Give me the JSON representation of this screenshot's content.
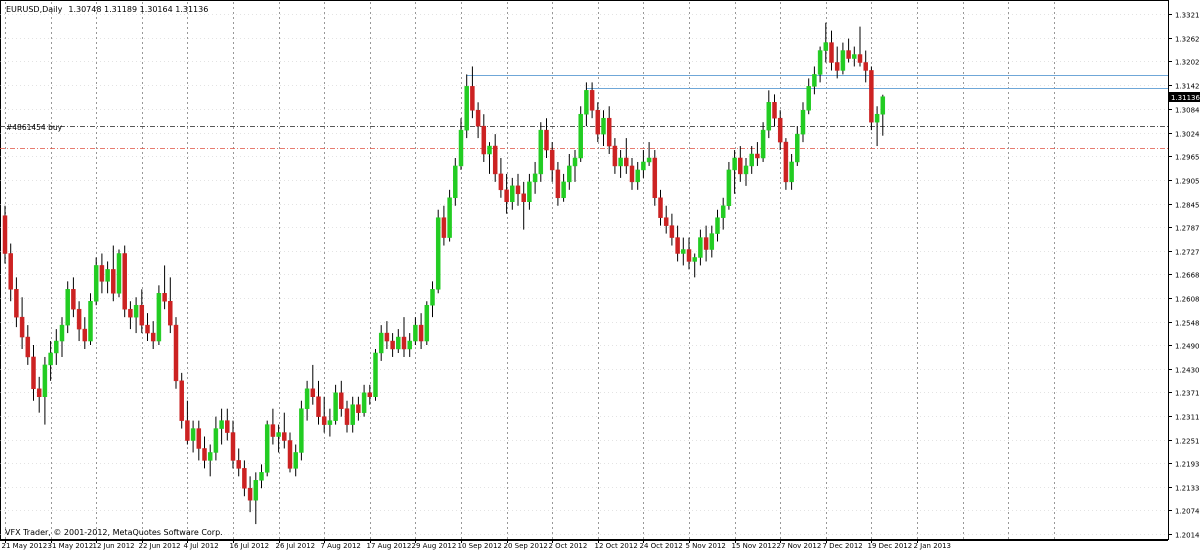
{
  "header": {
    "symbol": "EURUSD,Daily",
    "ohlc": "1.30748 1.31189 1.30164 1.31136"
  },
  "order_label": "#4861454 buy",
  "footer": {
    "copyright": "VFX Trader, © 2001-2012, MetaQuotes Software Corp."
  },
  "colors": {
    "bull": "#22cc22",
    "bear": "#cc2222",
    "grid": "#c8c8c8",
    "level_line": "#6fa7d8",
    "order_line": "#222222",
    "stop_line": "#e05040",
    "text": "#000000"
  },
  "chart_data": {
    "type": "candlestick",
    "price_axis_ticks": [
      1.3321,
      1.32625,
      1.32025,
      1.31425,
      1.3084,
      1.3024,
      1.29655,
      1.29055,
      1.28455,
      1.2787,
      1.2727,
      1.26685,
      1.26085,
      1.2548,
      1.249,
      1.243,
      1.23715,
      1.23115,
      1.22515,
      1.2193,
      1.2133,
      1.20745,
      1.20145
    ],
    "price_axis_labels": [
      "1.33210",
      "1.32625",
      "1.32025",
      "1.31425",
      "1.30840",
      "1.30240",
      "1.29655",
      "1.29055",
      "1.28455",
      "1.27870",
      "1.27270",
      "1.26685",
      "1.26085",
      "1.25480",
      "1.24900",
      "1.24300",
      "1.23715",
      "1.23115",
      "1.22515",
      "1.21930",
      "1.21330",
      "1.20745",
      "1.20145"
    ],
    "ylim": [
      1.2,
      1.3352
    ],
    "date_axis_labels": [
      "21 May 2012",
      "31 May 2012",
      "12 Jun 2012",
      "22 Jun 2012",
      "4 Jul 2012",
      "16 Jul 2012",
      "26 Jul 2012",
      "7 Aug 2012",
      "17 Aug 2012",
      "29 Aug 2012",
      "10 Sep 2012",
      "20 Sep 2012",
      "2 Oct 2012",
      "12 Oct 2012",
      "24 Oct 2012",
      "5 Nov 2012",
      "15 Nov 2012",
      "27 Nov 2012",
      "7 Dec 2012",
      "19 Dec 2012",
      "2 Jan 2013"
    ],
    "current_price": 1.31136,
    "current_price_label": "1.31136",
    "levels": [
      {
        "kind": "resistance",
        "price": 1.3169,
        "from_index": 81
      },
      {
        "kind": "resistance",
        "price": 1.3136,
        "from_index": 102
      }
    ],
    "order_line_price": 1.304,
    "stop_line_price": 1.2985,
    "grid": true,
    "candles": [
      [
        1.2815,
        1.284,
        1.2695,
        1.272
      ],
      [
        1.272,
        1.2745,
        1.26,
        1.263
      ],
      [
        1.263,
        1.266,
        1.2535,
        1.256
      ],
      [
        1.256,
        1.261,
        1.248,
        1.251
      ],
      [
        1.251,
        1.254,
        1.244,
        1.246
      ],
      [
        1.246,
        1.249,
        1.235,
        1.238
      ],
      [
        1.238,
        1.241,
        1.232,
        1.236
      ],
      [
        1.236,
        1.246,
        1.229,
        1.244
      ],
      [
        1.244,
        1.25,
        1.24,
        1.247
      ],
      [
        1.247,
        1.253,
        1.244,
        1.25
      ],
      [
        1.25,
        1.256,
        1.246,
        1.254
      ],
      [
        1.254,
        1.265,
        1.252,
        1.263
      ],
      [
        1.263,
        1.266,
        1.256,
        1.258
      ],
      [
        1.258,
        1.26,
        1.25,
        1.253
      ],
      [
        1.253,
        1.256,
        1.248,
        1.25
      ],
      [
        1.25,
        1.262,
        1.249,
        1.26
      ],
      [
        1.26,
        1.271,
        1.259,
        1.269
      ],
      [
        1.269,
        1.272,
        1.262,
        1.265
      ],
      [
        1.265,
        1.27,
        1.262,
        1.268
      ],
      [
        1.268,
        1.274,
        1.26,
        1.262
      ],
      [
        1.262,
        1.273,
        1.261,
        1.272
      ],
      [
        1.272,
        1.274,
        1.256,
        1.258
      ],
      [
        1.258,
        1.26,
        1.253,
        1.256
      ],
      [
        1.256,
        1.261,
        1.252,
        1.259
      ],
      [
        1.259,
        1.263,
        1.252,
        1.254
      ],
      [
        1.254,
        1.257,
        1.25,
        1.252
      ],
      [
        1.252,
        1.255,
        1.248,
        1.25
      ],
      [
        1.25,
        1.264,
        1.249,
        1.262
      ],
      [
        1.262,
        1.269,
        1.258,
        1.26
      ],
      [
        1.26,
        1.266,
        1.252,
        1.254
      ],
      [
        1.254,
        1.256,
        1.238,
        1.24
      ],
      [
        1.24,
        1.242,
        1.228,
        1.23
      ],
      [
        1.23,
        1.235,
        1.224,
        1.225
      ],
      [
        1.225,
        1.23,
        1.222,
        1.228
      ],
      [
        1.228,
        1.23,
        1.22,
        1.223
      ],
      [
        1.223,
        1.226,
        1.218,
        1.22
      ],
      [
        1.22,
        1.224,
        1.216,
        1.222
      ],
      [
        1.222,
        1.231,
        1.22,
        1.228
      ],
      [
        1.228,
        1.233,
        1.224,
        1.23
      ],
      [
        1.23,
        1.233,
        1.225,
        1.227
      ],
      [
        1.227,
        1.23,
        1.218,
        1.22
      ],
      [
        1.22,
        1.223,
        1.216,
        1.218
      ],
      [
        1.218,
        1.22,
        1.211,
        1.213
      ],
      [
        1.213,
        1.216,
        1.207,
        1.21
      ],
      [
        1.21,
        1.217,
        1.204,
        1.215
      ],
      [
        1.215,
        1.219,
        1.213,
        1.217
      ],
      [
        1.217,
        1.23,
        1.216,
        1.229
      ],
      [
        1.229,
        1.233,
        1.224,
        1.226
      ],
      [
        1.226,
        1.229,
        1.222,
        1.227
      ],
      [
        1.227,
        1.232,
        1.223,
        1.225
      ],
      [
        1.225,
        1.227,
        1.217,
        1.218
      ],
      [
        1.218,
        1.224,
        1.216,
        1.222
      ],
      [
        1.222,
        1.235,
        1.22,
        1.233
      ],
      [
        1.233,
        1.24,
        1.23,
        1.238
      ],
      [
        1.238,
        1.244,
        1.234,
        1.236
      ],
      [
        1.236,
        1.24,
        1.229,
        1.231
      ],
      [
        1.231,
        1.236,
        1.227,
        1.229
      ],
      [
        1.229,
        1.233,
        1.226,
        1.23
      ],
      [
        1.23,
        1.239,
        1.229,
        1.237
      ],
      [
        1.237,
        1.24,
        1.231,
        1.233
      ],
      [
        1.233,
        1.235,
        1.227,
        1.229
      ],
      [
        1.229,
        1.236,
        1.227,
        1.234
      ],
      [
        1.234,
        1.236,
        1.23,
        1.232
      ],
      [
        1.232,
        1.239,
        1.231,
        1.237
      ],
      [
        1.237,
        1.239,
        1.234,
        1.236
      ],
      [
        1.236,
        1.248,
        1.235,
        1.247
      ],
      [
        1.247,
        1.254,
        1.245,
        1.252
      ],
      [
        1.252,
        1.255,
        1.248,
        1.25
      ],
      [
        1.25,
        1.252,
        1.246,
        1.248
      ],
      [
        1.248,
        1.253,
        1.247,
        1.251
      ],
      [
        1.251,
        1.256,
        1.246,
        1.248
      ],
      [
        1.248,
        1.252,
        1.246,
        1.25
      ],
      [
        1.25,
        1.256,
        1.249,
        1.254
      ],
      [
        1.254,
        1.257,
        1.248,
        1.25
      ],
      [
        1.25,
        1.26,
        1.249,
        1.259
      ],
      [
        1.259,
        1.265,
        1.256,
        1.263
      ],
      [
        1.263,
        1.283,
        1.262,
        1.281
      ],
      [
        1.281,
        1.284,
        1.274,
        1.276
      ],
      [
        1.276,
        1.288,
        1.275,
        1.286
      ],
      [
        1.286,
        1.296,
        1.284,
        1.294
      ],
      [
        1.294,
        1.306,
        1.293,
        1.303
      ],
      [
        1.303,
        1.317,
        1.301,
        1.314
      ],
      [
        1.314,
        1.319,
        1.306,
        1.308
      ],
      [
        1.308,
        1.31,
        1.301,
        1.304
      ],
      [
        1.304,
        1.307,
        1.295,
        1.297
      ],
      [
        1.297,
        1.3,
        1.292,
        1.299
      ],
      [
        1.299,
        1.302,
        1.29,
        1.292
      ],
      [
        1.292,
        1.296,
        1.286,
        1.288
      ],
      [
        1.288,
        1.292,
        1.282,
        1.285
      ],
      [
        1.285,
        1.291,
        1.283,
        1.289
      ],
      [
        1.289,
        1.292,
        1.284,
        1.287
      ],
      [
        1.287,
        1.29,
        1.278,
        1.285
      ],
      [
        1.285,
        1.292,
        1.283,
        1.29
      ],
      [
        1.29,
        1.295,
        1.287,
        1.292
      ],
      [
        1.292,
        1.305,
        1.29,
        1.303
      ],
      [
        1.303,
        1.306,
        1.296,
        1.298
      ],
      [
        1.298,
        1.3,
        1.29,
        1.293
      ],
      [
        1.293,
        1.295,
        1.284,
        1.286
      ],
      [
        1.286,
        1.292,
        1.285,
        1.29
      ],
      [
        1.29,
        1.297,
        1.288,
        1.294
      ],
      [
        1.294,
        1.298,
        1.29,
        1.296
      ],
      [
        1.296,
        1.309,
        1.295,
        1.307
      ],
      [
        1.307,
        1.315,
        1.304,
        1.313
      ],
      [
        1.313,
        1.315,
        1.306,
        1.308
      ],
      [
        1.308,
        1.31,
        1.3,
        1.302
      ],
      [
        1.302,
        1.308,
        1.299,
        1.306
      ],
      [
        1.306,
        1.309,
        1.297,
        1.299
      ],
      [
        1.299,
        1.301,
        1.292,
        1.294
      ],
      [
        1.294,
        1.298,
        1.291,
        1.296
      ],
      [
        1.296,
        1.301,
        1.292,
        1.294
      ],
      [
        1.294,
        1.296,
        1.288,
        1.29
      ],
      [
        1.29,
        1.295,
        1.288,
        1.293
      ],
      [
        1.293,
        1.298,
        1.291,
        1.295
      ],
      [
        1.295,
        1.3,
        1.294,
        1.296
      ],
      [
        1.296,
        1.298,
        1.284,
        1.286
      ],
      [
        1.286,
        1.288,
        1.279,
        1.281
      ],
      [
        1.281,
        1.284,
        1.277,
        1.279
      ],
      [
        1.279,
        1.282,
        1.274,
        1.276
      ],
      [
        1.276,
        1.279,
        1.27,
        1.272
      ],
      [
        1.272,
        1.276,
        1.269,
        1.273
      ],
      [
        1.273,
        1.276,
        1.268,
        1.27
      ],
      [
        1.27,
        1.272,
        1.266,
        1.271
      ],
      [
        1.271,
        1.278,
        1.269,
        1.276
      ],
      [
        1.276,
        1.279,
        1.27,
        1.273
      ],
      [
        1.273,
        1.279,
        1.271,
        1.277
      ],
      [
        1.277,
        1.283,
        1.275,
        1.281
      ],
      [
        1.281,
        1.286,
        1.278,
        1.284
      ],
      [
        1.284,
        1.295,
        1.283,
        1.293
      ],
      [
        1.293,
        1.298,
        1.287,
        1.296
      ],
      [
        1.296,
        1.299,
        1.29,
        1.292
      ],
      [
        1.292,
        1.296,
        1.289,
        1.294
      ],
      [
        1.294,
        1.299,
        1.292,
        1.297
      ],
      [
        1.297,
        1.3,
        1.294,
        1.296
      ],
      [
        1.296,
        1.305,
        1.295,
        1.303
      ],
      [
        1.303,
        1.313,
        1.301,
        1.31
      ],
      [
        1.31,
        1.312,
        1.304,
        1.306
      ],
      [
        1.306,
        1.308,
        1.298,
        1.3
      ],
      [
        1.3,
        1.301,
        1.288,
        1.29
      ],
      [
        1.29,
        1.297,
        1.288,
        1.295
      ],
      [
        1.295,
        1.304,
        1.294,
        1.302
      ],
      [
        1.302,
        1.31,
        1.3,
        1.308
      ],
      [
        1.308,
        1.316,
        1.307,
        1.314
      ],
      [
        1.314,
        1.319,
        1.312,
        1.317
      ],
      [
        1.317,
        1.324,
        1.315,
        1.323
      ],
      [
        1.323,
        1.33,
        1.32,
        1.325
      ],
      [
        1.325,
        1.328,
        1.318,
        1.32
      ],
      [
        1.32,
        1.324,
        1.316,
        1.318
      ],
      [
        1.318,
        1.325,
        1.317,
        1.323
      ],
      [
        1.323,
        1.326,
        1.32,
        1.321
      ],
      [
        1.321,
        1.324,
        1.319,
        1.322
      ],
      [
        1.322,
        1.329,
        1.319,
        1.32
      ],
      [
        1.32,
        1.323,
        1.315,
        1.318
      ],
      [
        1.318,
        1.319,
        1.303,
        1.305
      ],
      [
        1.305,
        1.309,
        1.299,
        1.307
      ],
      [
        1.307,
        1.3119,
        1.3016,
        1.3114
      ]
    ]
  }
}
